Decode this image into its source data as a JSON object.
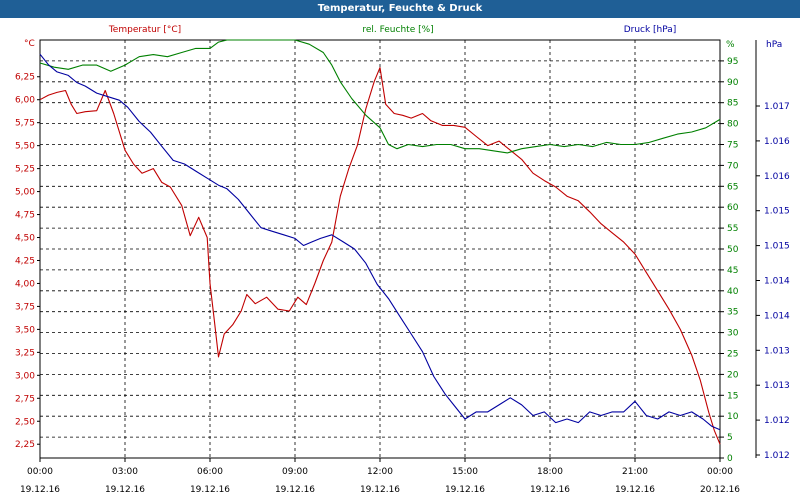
{
  "window": {
    "title": "Temperatur, Feuchte & Druck"
  },
  "chart_data": {
    "type": "line",
    "title": "Temperatur, Feuchte & Druck",
    "grid": true,
    "x_ticks": [
      {
        "time": "00:00",
        "date": "19.12.16"
      },
      {
        "time": "03:00",
        "date": "19.12.16"
      },
      {
        "time": "06:00",
        "date": "19.12.16"
      },
      {
        "time": "09:00",
        "date": "19.12.16"
      },
      {
        "time": "12:00",
        "date": "19.12.16"
      },
      {
        "time": "15:00",
        "date": "19.12.16"
      },
      {
        "time": "18:00",
        "date": "19.12.16"
      },
      {
        "time": "21:00",
        "date": "19.12.16"
      },
      {
        "time": "00:00",
        "date": "20.12.16"
      }
    ],
    "x_range_hours": [
      0,
      24
    ],
    "axes": {
      "temperature": {
        "label": "Temperatur [°C]",
        "unit": "°C",
        "color": "#c00000",
        "range": [
          2.1,
          6.65
        ],
        "ticks": [
          "6,25",
          "6,00",
          "5,75",
          "5,50",
          "5,25",
          "5,00",
          "4,75",
          "4,50",
          "4,25",
          "4,00",
          "3,75",
          "3,50",
          "3,25",
          "3,00",
          "2,75",
          "2,50",
          "2,25"
        ]
      },
      "humidity": {
        "label": "rel. Feuchte [%]",
        "unit": "%",
        "color": "#008000",
        "range": [
          0,
          100
        ],
        "ticks": [
          "95",
          "90",
          "85",
          "80",
          "75",
          "70",
          "65",
          "60",
          "55",
          "50",
          "45",
          "40",
          "35",
          "30",
          "25",
          "20",
          "15",
          "10",
          "5",
          "0"
        ]
      },
      "pressure": {
        "label": "Druck [hPa]",
        "unit": "hPa",
        "color": "#0000a0",
        "range": [
          1011.8,
          1017.7
        ],
        "ticks": [
          "1.017",
          "1.016",
          "1.016",
          "1.015",
          "1.015",
          "1.014",
          "1.014",
          "1.013",
          "1.013",
          "1.012",
          "1.012"
        ]
      }
    },
    "series": [
      {
        "name": "Temperatur [°C]",
        "axis": "temperature",
        "color": "#c00000",
        "points": [
          [
            0,
            6.0
          ],
          [
            0.3,
            6.05
          ],
          [
            0.6,
            6.08
          ],
          [
            0.9,
            6.1
          ],
          [
            1.1,
            5.95
          ],
          [
            1.3,
            5.85
          ],
          [
            1.6,
            5.87
          ],
          [
            2.0,
            5.88
          ],
          [
            2.3,
            6.1
          ],
          [
            2.6,
            5.85
          ],
          [
            3.0,
            5.45
          ],
          [
            3.3,
            5.3
          ],
          [
            3.6,
            5.2
          ],
          [
            4.0,
            5.25
          ],
          [
            4.3,
            5.1
          ],
          [
            4.6,
            5.05
          ],
          [
            5.0,
            4.85
          ],
          [
            5.3,
            4.52
          ],
          [
            5.6,
            4.72
          ],
          [
            5.9,
            4.5
          ],
          [
            6.0,
            4.0
          ],
          [
            6.15,
            3.6
          ],
          [
            6.3,
            3.2
          ],
          [
            6.5,
            3.45
          ],
          [
            6.8,
            3.55
          ],
          [
            7.1,
            3.7
          ],
          [
            7.3,
            3.88
          ],
          [
            7.6,
            3.78
          ],
          [
            8.0,
            3.85
          ],
          [
            8.4,
            3.72
          ],
          [
            8.8,
            3.7
          ],
          [
            9.1,
            3.85
          ],
          [
            9.4,
            3.77
          ],
          [
            9.7,
            4.0
          ],
          [
            10.0,
            4.25
          ],
          [
            10.3,
            4.45
          ],
          [
            10.6,
            4.95
          ],
          [
            10.9,
            5.25
          ],
          [
            11.2,
            5.5
          ],
          [
            11.5,
            5.9
          ],
          [
            11.8,
            6.2
          ],
          [
            12.0,
            6.35
          ],
          [
            12.2,
            5.95
          ],
          [
            12.5,
            5.85
          ],
          [
            12.8,
            5.83
          ],
          [
            13.1,
            5.8
          ],
          [
            13.5,
            5.85
          ],
          [
            13.8,
            5.77
          ],
          [
            14.2,
            5.72
          ],
          [
            14.6,
            5.72
          ],
          [
            15.0,
            5.7
          ],
          [
            15.4,
            5.6
          ],
          [
            15.8,
            5.5
          ],
          [
            16.2,
            5.55
          ],
          [
            16.6,
            5.45
          ],
          [
            17.0,
            5.35
          ],
          [
            17.4,
            5.2
          ],
          [
            17.8,
            5.12
          ],
          [
            18.2,
            5.05
          ],
          [
            18.6,
            4.95
          ],
          [
            19.0,
            4.9
          ],
          [
            19.4,
            4.78
          ],
          [
            19.8,
            4.65
          ],
          [
            20.2,
            4.55
          ],
          [
            20.6,
            4.45
          ],
          [
            21.0,
            4.32
          ],
          [
            21.4,
            4.12
          ],
          [
            21.8,
            3.92
          ],
          [
            22.2,
            3.72
          ],
          [
            22.6,
            3.5
          ],
          [
            23.0,
            3.22
          ],
          [
            23.3,
            2.95
          ],
          [
            23.6,
            2.6
          ],
          [
            23.8,
            2.4
          ],
          [
            24.0,
            2.25
          ]
        ]
      },
      {
        "name": "rel. Feuchte [%]",
        "axis": "humidity",
        "color": "#008000",
        "points": [
          [
            0,
            94.5
          ],
          [
            0.5,
            93.5
          ],
          [
            1.0,
            93
          ],
          [
            1.5,
            94
          ],
          [
            2.0,
            94
          ],
          [
            2.5,
            92.5
          ],
          [
            3.0,
            94
          ],
          [
            3.5,
            96
          ],
          [
            4.0,
            96.5
          ],
          [
            4.5,
            96
          ],
          [
            5.0,
            97
          ],
          [
            5.5,
            98
          ],
          [
            6.0,
            98
          ],
          [
            6.3,
            99.5
          ],
          [
            6.6,
            100
          ],
          [
            7.2,
            100
          ],
          [
            8.0,
            100
          ],
          [
            9.0,
            100
          ],
          [
            9.5,
            99
          ],
          [
            10.0,
            97
          ],
          [
            10.3,
            94
          ],
          [
            10.6,
            90
          ],
          [
            11.0,
            86
          ],
          [
            11.5,
            82
          ],
          [
            12.0,
            79
          ],
          [
            12.3,
            75
          ],
          [
            12.6,
            74
          ],
          [
            13.0,
            75
          ],
          [
            13.5,
            74.5
          ],
          [
            14.0,
            75
          ],
          [
            14.5,
            75
          ],
          [
            15.0,
            74
          ],
          [
            15.5,
            74
          ],
          [
            16.0,
            73.5
          ],
          [
            16.5,
            73
          ],
          [
            17.0,
            74
          ],
          [
            17.5,
            74.5
          ],
          [
            18.0,
            75
          ],
          [
            18.5,
            74.5
          ],
          [
            19.0,
            75
          ],
          [
            19.5,
            74.5
          ],
          [
            20.0,
            75.5
          ],
          [
            20.5,
            75
          ],
          [
            21.0,
            75
          ],
          [
            21.5,
            75.5
          ],
          [
            22.0,
            76.5
          ],
          [
            22.5,
            77.5
          ],
          [
            23.0,
            78
          ],
          [
            23.5,
            79
          ],
          [
            24.0,
            81
          ]
        ]
      },
      {
        "name": "Druck [hPa]",
        "axis": "pressure",
        "color": "#0000a0",
        "points": [
          [
            0,
            1017.5
          ],
          [
            0.3,
            1017.35
          ],
          [
            0.6,
            1017.25
          ],
          [
            1.0,
            1017.2
          ],
          [
            1.3,
            1017.1
          ],
          [
            1.6,
            1017.05
          ],
          [
            2.0,
            1016.95
          ],
          [
            2.4,
            1016.9
          ],
          [
            2.8,
            1016.85
          ],
          [
            3.1,
            1016.75
          ],
          [
            3.5,
            1016.55
          ],
          [
            3.9,
            1016.4
          ],
          [
            4.3,
            1016.2
          ],
          [
            4.7,
            1016.0
          ],
          [
            5.1,
            1015.95
          ],
          [
            5.5,
            1015.85
          ],
          [
            5.9,
            1015.75
          ],
          [
            6.3,
            1015.65
          ],
          [
            6.6,
            1015.6
          ],
          [
            7.0,
            1015.45
          ],
          [
            7.4,
            1015.25
          ],
          [
            7.8,
            1015.05
          ],
          [
            8.2,
            1015.0
          ],
          [
            8.6,
            1014.95
          ],
          [
            9.0,
            1014.9
          ],
          [
            9.3,
            1014.8
          ],
          [
            9.6,
            1014.85
          ],
          [
            9.9,
            1014.9
          ],
          [
            10.3,
            1014.95
          ],
          [
            10.7,
            1014.85
          ],
          [
            11.1,
            1014.75
          ],
          [
            11.5,
            1014.55
          ],
          [
            11.9,
            1014.25
          ],
          [
            12.3,
            1014.05
          ],
          [
            12.7,
            1013.8
          ],
          [
            13.1,
            1013.55
          ],
          [
            13.5,
            1013.3
          ],
          [
            13.9,
            1012.95
          ],
          [
            14.3,
            1012.7
          ],
          [
            14.6,
            1012.55
          ],
          [
            15.0,
            1012.35
          ],
          [
            15.4,
            1012.45
          ],
          [
            15.8,
            1012.45
          ],
          [
            16.2,
            1012.55
          ],
          [
            16.6,
            1012.65
          ],
          [
            17.0,
            1012.55
          ],
          [
            17.4,
            1012.4
          ],
          [
            17.8,
            1012.45
          ],
          [
            18.2,
            1012.3
          ],
          [
            18.6,
            1012.35
          ],
          [
            19.0,
            1012.3
          ],
          [
            19.4,
            1012.45
          ],
          [
            19.8,
            1012.4
          ],
          [
            20.2,
            1012.45
          ],
          [
            20.6,
            1012.45
          ],
          [
            21.0,
            1012.6
          ],
          [
            21.4,
            1012.4
          ],
          [
            21.8,
            1012.35
          ],
          [
            22.2,
            1012.45
          ],
          [
            22.6,
            1012.4
          ],
          [
            23.0,
            1012.45
          ],
          [
            23.4,
            1012.35
          ],
          [
            23.7,
            1012.25
          ],
          [
            24.0,
            1012.2
          ]
        ]
      }
    ]
  }
}
